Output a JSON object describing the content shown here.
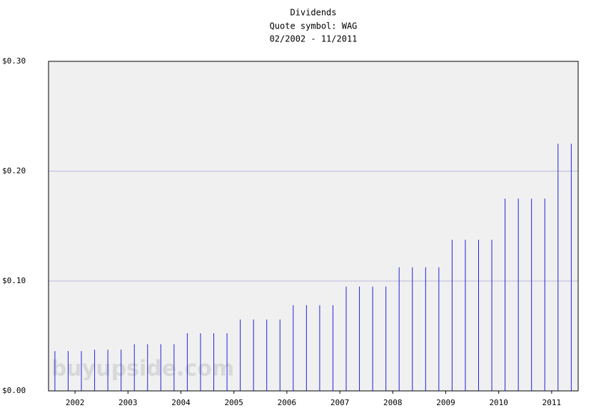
{
  "chart_data": {
    "type": "stem",
    "title": "Dividends",
    "subtitle": "Quote symbol: WAG",
    "period": "02/2002 - 11/2011",
    "watermark": "buyupside.com",
    "color": "#2222dd",
    "grid": true,
    "x": [
      2002.12,
      2002.37,
      2002.62,
      2002.87,
      2003.12,
      2003.37,
      2003.62,
      2003.87,
      2004.12,
      2004.37,
      2004.62,
      2004.87,
      2005.12,
      2005.37,
      2005.62,
      2005.87,
      2006.12,
      2006.37,
      2006.62,
      2006.87,
      2007.12,
      2007.37,
      2007.62,
      2007.87,
      2008.12,
      2008.37,
      2008.62,
      2008.87,
      2009.12,
      2009.37,
      2009.62,
      2009.87,
      2010.12,
      2010.37,
      2010.62,
      2010.87,
      2011.12,
      2011.37,
      2011.62,
      2011.87
    ],
    "values": [
      0.03625,
      0.03625,
      0.03625,
      0.0375,
      0.0375,
      0.0375,
      0.0425,
      0.0425,
      0.0425,
      0.0425,
      0.0525,
      0.0525,
      0.0525,
      0.0525,
      0.065,
      0.065,
      0.065,
      0.065,
      0.078,
      0.078,
      0.078,
      0.078,
      0.095,
      0.095,
      0.095,
      0.095,
      0.1125,
      0.1125,
      0.1125,
      0.1125,
      0.1375,
      0.1375,
      0.1375,
      0.1375,
      0.175,
      0.175,
      0.175,
      0.175,
      0.225,
      0.225
    ],
    "xlim": [
      2002,
      2012
    ],
    "xticks": [
      {
        "value": 2002.5,
        "label": "2002"
      },
      {
        "value": 2003.5,
        "label": "2003"
      },
      {
        "value": 2004.5,
        "label": "2004"
      },
      {
        "value": 2005.5,
        "label": "2005"
      },
      {
        "value": 2006.5,
        "label": "2006"
      },
      {
        "value": 2007.5,
        "label": "2007"
      },
      {
        "value": 2008.5,
        "label": "2008"
      },
      {
        "value": 2009.5,
        "label": "2009"
      },
      {
        "value": 2010.5,
        "label": "2010"
      },
      {
        "value": 2011.5,
        "label": "2011"
      }
    ],
    "ylim": [
      0,
      0.3
    ],
    "yticks": [
      {
        "value": 0,
        "label": "$0.00"
      },
      {
        "value": 0.1,
        "label": "$0.10"
      },
      {
        "value": 0.2,
        "label": "$0.20"
      },
      {
        "value": 0.3,
        "label": "$0.30"
      }
    ]
  }
}
